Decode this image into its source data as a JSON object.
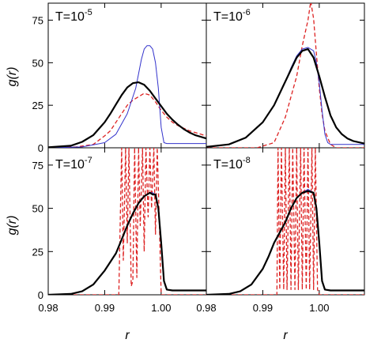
{
  "chart_data": {
    "type": "line",
    "ylabel": "g(r)",
    "xlabel": "r",
    "xlim": [
      0.98,
      1.008
    ],
    "ylim": [
      0,
      85
    ],
    "x_ticks": [
      0.98,
      0.99,
      1.0
    ],
    "x_tick_labels": [
      "0.98",
      "0.99",
      "1.00"
    ],
    "y_ticks": [
      0,
      25,
      50,
      75
    ],
    "y_tick_labels": [
      "0",
      "25",
      "50",
      "75"
    ],
    "colors": {
      "black": "#000000",
      "blue": "#3333cc",
      "red": "#dd2222"
    },
    "panels": [
      {
        "id": "t5",
        "label_base": "T=10",
        "label_exp": "-5",
        "series": [
          {
            "style": "black",
            "x": [
              0.98,
              0.984,
              0.986,
              0.988,
              0.99,
              0.991,
              0.992,
              0.993,
              0.994,
              0.995,
              0.996,
              0.997,
              0.998,
              0.999,
              1.0,
              1.001,
              1.002,
              1.003,
              1.004,
              1.005,
              1.006,
              1.008
            ],
            "y": [
              0.3,
              1.2,
              3.5,
              7.5,
              15,
              20,
              25.5,
              31,
              35.5,
              38,
              38.5,
              37,
              33.5,
              29,
              24.5,
              20,
              16.5,
              13.5,
              11,
              9,
              7.5,
              5.5
            ]
          },
          {
            "style": "blue",
            "x": [
              0.98,
              0.986,
              0.99,
              0.992,
              0.994,
              0.9955,
              0.9965,
              0.997,
              0.9975,
              0.998,
              0.9985,
              0.999,
              0.9995,
              1.0,
              1.0005,
              1.001,
              1.003,
              1.006,
              1.008
            ],
            "y": [
              0,
              0.5,
              3,
              8,
              20,
              35,
              52,
              58,
              60,
              60,
              58,
              50,
              35,
              12,
              3,
              2.5,
              2.5,
              2.5,
              2.5
            ]
          },
          {
            "style": "red",
            "x": [
              0.98,
              0.985,
              0.988,
              0.99,
              0.991,
              0.992,
              0.993,
              0.994,
              0.995,
              0.996,
              0.997,
              0.998,
              0.999,
              1.0,
              1.001,
              1.002,
              1.003,
              1.004,
              1.005,
              1.006,
              1.007,
              1.008
            ],
            "y": [
              0,
              0.5,
              2,
              7,
              10,
              15,
              20,
              25,
              28,
              30,
              32,
              31,
              27,
              22,
              18,
              15,
              13,
              11.5,
              10,
              9,
              8,
              7
            ]
          }
        ]
      },
      {
        "id": "t6",
        "label_base": "T=10",
        "label_exp": "-6",
        "series": [
          {
            "style": "black",
            "x": [
              0.98,
              0.984,
              0.987,
              0.99,
              0.992,
              0.994,
              0.995,
              0.996,
              0.997,
              0.998,
              0.999,
              1.0,
              1.001,
              1.002,
              1.003,
              1.004,
              1.005,
              1.006,
              1.008
            ],
            "y": [
              0.5,
              2,
              6,
              15,
              25,
              39,
              46,
              53,
              57,
              58,
              53,
              42,
              30,
              19,
              12,
              8,
              5.5,
              4,
              2.5
            ]
          },
          {
            "style": "blue",
            "x": [
              0.98,
              0.984,
              0.987,
              0.99,
              0.992,
              0.994,
              0.995,
              0.996,
              0.997,
              0.998,
              0.999,
              0.9995,
              1.0,
              1.0005,
              1.001,
              1.0015,
              1.002,
              1.008
            ],
            "y": [
              0.5,
              2,
              6,
              15,
              25,
              39,
              47,
              54,
              58,
              59,
              57,
              50,
              38,
              22,
              8,
              3,
              2,
              2
            ]
          },
          {
            "style": "red",
            "x": [
              0.98,
              0.989,
              0.992,
              0.994,
              0.995,
              0.996,
              0.997,
              0.998,
              0.9985,
              0.999,
              0.9995,
              1.0,
              1.0005,
              1.001,
              1.002,
              1.003,
              1.008
            ],
            "y": [
              0,
              0,
              3,
              18,
              30,
              42,
              60,
              75,
              86,
              76,
              55,
              35,
              20,
              10,
              2,
              0,
              0
            ]
          }
        ]
      },
      {
        "id": "t7",
        "label_base": "T=10",
        "label_exp": "-7",
        "series": [
          {
            "style": "black",
            "x": [
              0.98,
              0.984,
              0.986,
              0.988,
              0.99,
              0.991,
              0.992,
              0.993,
              0.994,
              0.995,
              0.996,
              0.997,
              0.998,
              0.9985,
              0.999,
              0.9995,
              1.0,
              1.0005,
              1.001,
              1.002,
              1.004,
              1.006,
              1.008
            ],
            "y": [
              0,
              0.5,
              2,
              6,
              14,
              19,
              24,
              32,
              40,
              47,
              53,
              57,
              59,
              58,
              58,
              50,
              30,
              8,
              3,
              2.5,
              2.5,
              2.5,
              2.5
            ]
          },
          {
            "style": "blue",
            "x": [
              0.98,
              0.984,
              0.986,
              0.988,
              0.99,
              0.991,
              0.992,
              0.993,
              0.994,
              0.995,
              0.996,
              0.997,
              0.998,
              0.9985,
              0.999,
              0.9995,
              1.0,
              1.0005,
              1.001,
              1.002,
              1.004,
              1.006,
              1.008
            ],
            "y": [
              0,
              0.5,
              2,
              6,
              14,
              19,
              24,
              32,
              40,
              47,
              53,
              57,
              59,
              59,
              58,
              50,
              30,
              8,
              3,
              2.5,
              2.5,
              2.5,
              2.5
            ]
          },
          {
            "style": "red",
            "x": [
              0.98,
              0.9925,
              0.993,
              0.9933,
              0.9937,
              0.994,
              0.9943,
              0.9947,
              0.995,
              0.9953,
              0.9957,
              0.996,
              0.9963,
              0.9967,
              0.997,
              0.9973,
              0.9977,
              0.998,
              0.9983,
              0.9987,
              0.999,
              0.9993,
              0.9997,
              1.0,
              1.008
            ],
            "y": [
              0,
              0,
              85,
              20,
              85,
              30,
              85,
              5,
              8,
              85,
              10,
              85,
              40,
              85,
              25,
              85,
              45,
              85,
              50,
              85,
              35,
              85,
              40,
              0,
              0
            ]
          }
        ]
      },
      {
        "id": "t8",
        "label_base": "T=10",
        "label_exp": "-8",
        "series": [
          {
            "style": "black",
            "x": [
              0.98,
              0.984,
              0.986,
              0.988,
              0.99,
              0.991,
              0.992,
              0.993,
              0.994,
              0.995,
              0.996,
              0.997,
              0.998,
              0.999,
              0.9995,
              1.0,
              1.0005,
              1.001,
              1.002,
              1.004,
              1.006,
              1.008
            ],
            "y": [
              0,
              0.5,
              2,
              6,
              15,
              22,
              30,
              36,
              42,
              50,
              56,
              59,
              60,
              59,
              50,
              30,
              8,
              3,
              2.5,
              2.5,
              2.5,
              2.5
            ]
          },
          {
            "style": "blue",
            "x": [
              0.98,
              0.984,
              0.986,
              0.988,
              0.99,
              0.991,
              0.992,
              0.993,
              0.994,
              0.995,
              0.996,
              0.997,
              0.998,
              0.999,
              0.9995,
              1.0,
              1.0005,
              1.001,
              1.002,
              1.004,
              1.006,
              1.008
            ],
            "y": [
              0,
              0.5,
              2,
              6,
              15,
              22,
              30,
              36,
              42,
              50,
              56,
              59,
              61,
              59,
              50,
              30,
              8,
              3,
              2.5,
              2.5,
              2.5,
              2.5
            ]
          },
          {
            "style": "red",
            "x": [
              0.98,
              0.9925,
              0.9927,
              0.993,
              0.9933,
              0.9937,
              0.994,
              0.9943,
              0.9947,
              0.995,
              0.9953,
              0.9957,
              0.996,
              0.9963,
              0.9967,
              0.997,
              0.9973,
              0.9977,
              0.998,
              0.9983,
              0.9987,
              0.999,
              0.9993,
              0.9997,
              1.0,
              1.008
            ],
            "y": [
              0,
              0,
              85,
              3,
              85,
              3,
              85,
              3,
              85,
              3,
              85,
              3,
              85,
              3,
              85,
              3,
              85,
              3,
              85,
              3,
              85,
              3,
              85,
              3,
              0,
              0
            ]
          }
        ]
      }
    ]
  }
}
